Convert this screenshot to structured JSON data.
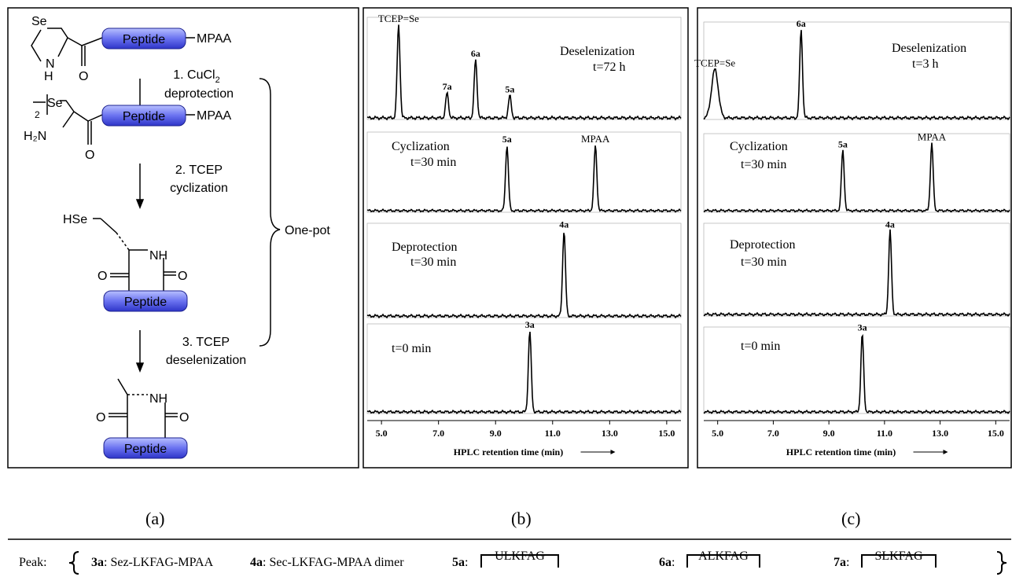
{
  "panel_a": {
    "peptide_label": "Peptide",
    "mpaa_label": "MPAA",
    "se_label": "Se",
    "n_label": "N",
    "h_label": "H",
    "o_label": "O",
    "h2n_label": "H₂N",
    "sub2_label": "2",
    "hse_label": "HSe",
    "nh_label": "NH",
    "step1_line1": "1. CuCl",
    "step1_sub": "2",
    "step1_line2": "deprotection",
    "step2_line1": "2. TCEP",
    "step2_line2": "cyclization",
    "step3_line1": "3. TCEP",
    "step3_line2": "deselenization",
    "onepot": "One-pot"
  },
  "panel_b": {
    "traces": [
      {
        "title": "Deselenization",
        "time": "t=72 h",
        "peaks": [
          "TCEP=Se",
          "7a",
          "6a",
          "5a"
        ]
      },
      {
        "title": "Cyclization",
        "time": "t=30 min",
        "peaks": [
          "5a",
          "MPAA"
        ]
      },
      {
        "title": "Deprotection",
        "time": "t=30 min",
        "peaks": [
          "4a"
        ]
      },
      {
        "title": "",
        "time": "t=0 min",
        "peaks": [
          "3a"
        ]
      }
    ],
    "ticks": [
      "5.0",
      "7.0",
      "9.0",
      "11.0",
      "13.0",
      "15.0"
    ],
    "xlabel": "HPLC retention time (min)"
  },
  "panel_c": {
    "traces": [
      {
        "title": "Deselenization",
        "time": "t=3 h",
        "peaks": [
          "TCEP=Se",
          "6a"
        ]
      },
      {
        "title": "Cyclization",
        "time": "t=30 min",
        "peaks": [
          "5a",
          "MPAA"
        ]
      },
      {
        "title": "Deprotection",
        "time": "t=30 min",
        "peaks": [
          "4a"
        ]
      },
      {
        "title": "",
        "time": "t=0 min",
        "peaks": [
          "3a"
        ]
      }
    ],
    "ticks": [
      "5.0",
      "7.0",
      "9.0",
      "11.0",
      "13.0",
      "15.0"
    ],
    "xlabel": "HPLC retention time (min)"
  },
  "captions": {
    "a": "(a)",
    "b": "(b)",
    "c": "(c)"
  },
  "legend": {
    "prefix": "Peak:",
    "items": [
      {
        "id": "3a",
        "desc": ": Sez-LKFAG-MPAA"
      },
      {
        "id": "4a",
        "desc": ": Sec-LKFAG-MPAA dimer"
      },
      {
        "id": "5a",
        "desc": ":",
        "seq": "ULKFAG"
      },
      {
        "id": "6a",
        "desc": ":",
        "seq": "ALKFAG"
      },
      {
        "id": "7a",
        "desc": ":",
        "seq": "SLKFAG"
      }
    ]
  },
  "chart_data": [
    {
      "type": "line",
      "panel": "b",
      "xlabel": "HPLC retention time (min)",
      "xlim": [
        4.5,
        15.5
      ],
      "xticks": [
        5.0,
        7.0,
        9.0,
        11.0,
        13.0,
        15.0
      ],
      "series": [
        {
          "name": "Deselenization t=72 h",
          "peaks": [
            {
              "label": "TCEP=Se",
              "x": 5.6,
              "height": 1.0
            },
            {
              "label": "7a",
              "x": 7.3,
              "height": 0.27
            },
            {
              "label": "6a",
              "x": 8.3,
              "height": 0.63
            },
            {
              "label": "5a",
              "x": 9.5,
              "height": 0.24
            }
          ]
        },
        {
          "name": "Cyclization t=30 min",
          "peaks": [
            {
              "label": "5a",
              "x": 9.4,
              "height": 0.9
            },
            {
              "label": "MPAA",
              "x": 12.5,
              "height": 0.9
            }
          ]
        },
        {
          "name": "Deprotection t=30 min",
          "peaks": [
            {
              "label": "4a",
              "x": 11.4,
              "height": 1.0
            }
          ]
        },
        {
          "name": "t=0 min",
          "peaks": [
            {
              "label": "3a",
              "x": 10.2,
              "height": 1.0
            }
          ]
        }
      ]
    },
    {
      "type": "line",
      "panel": "c",
      "xlabel": "HPLC retention time (min)",
      "xlim": [
        4.5,
        15.5
      ],
      "xticks": [
        5.0,
        7.0,
        9.0,
        11.0,
        13.0,
        15.0
      ],
      "series": [
        {
          "name": "Deselenization t=3 h",
          "peaks": [
            {
              "label": "TCEP=Se",
              "x": 4.9,
              "height": 0.55
            },
            {
              "label": "6a",
              "x": 8.0,
              "height": 1.0
            }
          ]
        },
        {
          "name": "Cyclization t=30 min",
          "peaks": [
            {
              "label": "5a",
              "x": 9.5,
              "height": 0.85
            },
            {
              "label": "MPAA",
              "x": 12.7,
              "height": 0.95
            }
          ]
        },
        {
          "name": "Deprotection t=30 min",
          "peaks": [
            {
              "label": "4a",
              "x": 11.2,
              "height": 1.0
            }
          ]
        },
        {
          "name": "t=0 min",
          "peaks": [
            {
              "label": "3a",
              "x": 10.2,
              "height": 1.0
            }
          ]
        }
      ]
    }
  ]
}
